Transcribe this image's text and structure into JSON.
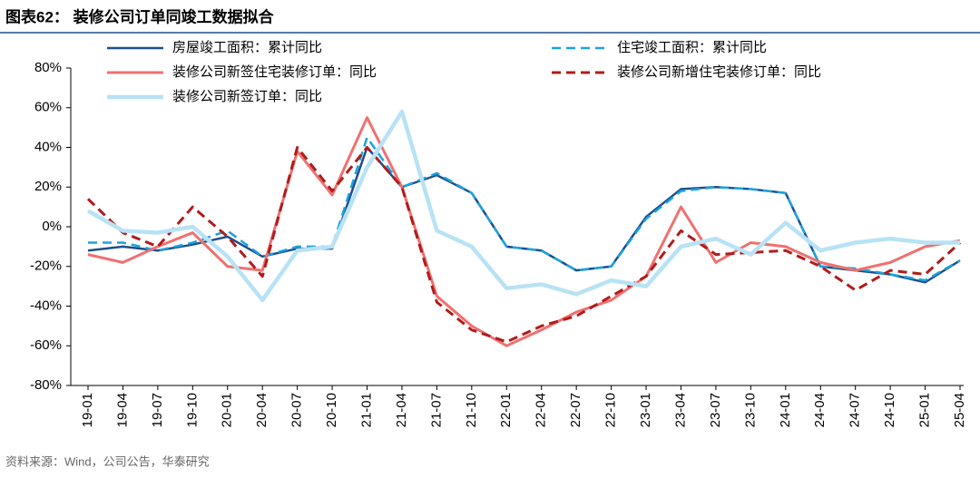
{
  "chart_data": {
    "type": "line",
    "title": "图表62：  装修公司订单同竣工数据拟合",
    "source": "资料来源：Wind，公司公告，华泰研究",
    "categories": [
      "19-01",
      "19-04",
      "19-07",
      "19-10",
      "20-01",
      "20-04",
      "20-07",
      "20-10",
      "21-01",
      "21-04",
      "21-07",
      "21-10",
      "22-01",
      "22-04",
      "22-07",
      "22-10",
      "23-01",
      "23-04",
      "23-07",
      "23-10",
      "24-01",
      "24-04",
      "24-07",
      "24-10",
      "25-01",
      "25-04"
    ],
    "ylim": [
      -80,
      80
    ],
    "yticks": [
      {
        "value": -80,
        "label": "-80%"
      },
      {
        "value": -60,
        "label": "-60%"
      },
      {
        "value": -40,
        "label": "-40%"
      },
      {
        "value": -20,
        "label": "-20%"
      },
      {
        "value": 0,
        "label": "0%"
      },
      {
        "value": 20,
        "label": "20%"
      },
      {
        "value": 40,
        "label": "40%"
      },
      {
        "value": 60,
        "label": "60%"
      },
      {
        "value": 80,
        "label": "80%"
      }
    ],
    "series": [
      {
        "name": "房屋竣工面积：累计同比",
        "color": "#1f4e8c",
        "dash": false,
        "values": [
          -12,
          -10,
          -12,
          -9,
          -5,
          -15,
          -11,
          -11,
          40,
          20,
          26,
          17,
          -10,
          -12,
          -22,
          -20,
          5,
          19,
          20,
          19,
          17,
          -20,
          -22,
          -24,
          -28,
          -17
        ]
      },
      {
        "name": "住宅竣工面积：累计同比",
        "color": "#1aa3e0",
        "dash": true,
        "values": [
          -8,
          -8,
          -12,
          -8,
          -2,
          -15,
          -10,
          -10,
          45,
          20,
          27,
          17,
          -10,
          -12,
          -22,
          -20,
          4,
          18,
          20,
          19,
          17,
          -20,
          -21,
          -24,
          -27,
          -17
        ]
      },
      {
        "name": "装修公司新签住宅装修订单：同比",
        "color": "#f07070",
        "dash": false,
        "values": [
          -14,
          -18,
          -10,
          -3,
          -20,
          -22,
          38,
          16,
          55,
          20,
          -35,
          -50,
          -60,
          -52,
          -43,
          -37,
          -25,
          10,
          -18,
          -8,
          -10,
          -18,
          -22,
          -18,
          -10,
          -7
        ]
      },
      {
        "name": "装修公司新增住宅装修订单：同比",
        "color": "#b01c1c",
        "dash": true,
        "values": [
          14,
          -3,
          -10,
          10,
          -5,
          -25,
          40,
          18,
          40,
          20,
          -38,
          -52,
          -58,
          -50,
          -45,
          -35,
          -25,
          -2,
          -14,
          -13,
          -12,
          -20,
          -32,
          -22,
          -24,
          -8
        ]
      },
      {
        "name": "装修公司新签订单：同比",
        "color": "#b8e2f5",
        "dash": false,
        "values": [
          8,
          -2,
          -3,
          0,
          -15,
          -37,
          -12,
          -10,
          30,
          58,
          -2,
          -10,
          -31,
          -29,
          -34,
          -27,
          -30,
          -10,
          -6,
          -14,
          2,
          -12,
          -8,
          -6,
          -8,
          -8
        ]
      }
    ]
  }
}
